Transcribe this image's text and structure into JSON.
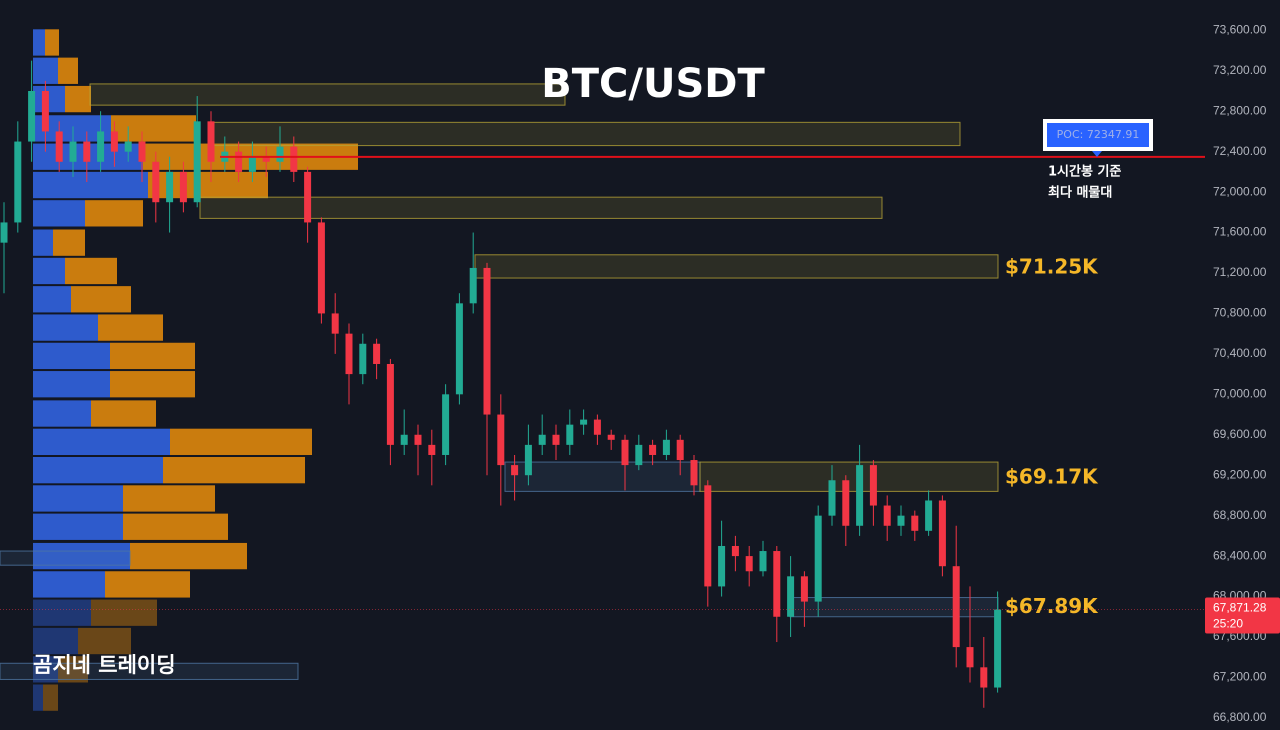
{
  "title": "BTC/USDT",
  "watermark": "곰지네 트레이딩",
  "chart_data": {
    "type": "candlestick",
    "open": [
      71500,
      71700,
      72500,
      73000,
      72600,
      72300,
      72500,
      72300,
      72600,
      72400,
      72500,
      72300,
      71900,
      72200,
      71900,
      72700,
      72300,
      72400,
      72200,
      72350,
      72300,
      72450,
      72200,
      71700,
      70800,
      70600,
      70200,
      70500,
      70300,
      69500,
      69600,
      69500,
      69400,
      70000,
      70900,
      71250,
      69800,
      69300,
      69200,
      69500,
      69600,
      69500,
      69700,
      69750,
      69600,
      69550,
      69300,
      69500,
      69400,
      69550,
      69350,
      69100,
      68100,
      68500,
      68400,
      68250,
      68450,
      67800,
      68200,
      67950,
      68800,
      69150,
      68700,
      69300,
      68900,
      68700,
      68800,
      68650,
      68950,
      68300,
      67500,
      67300,
      67100
    ],
    "high": [
      71900,
      72700,
      73300,
      73100,
      72700,
      72650,
      72600,
      72800,
      72700,
      72650,
      72600,
      72400,
      72350,
      72300,
      72950,
      72800,
      72550,
      72500,
      72500,
      72450,
      72650,
      72550,
      72250,
      71750,
      71000,
      70700,
      70600,
      70550,
      70350,
      69850,
      69700,
      69650,
      70100,
      71000,
      71600,
      71300,
      70000,
      69400,
      69700,
      69800,
      69700,
      69850,
      69850,
      69800,
      69650,
      69600,
      69600,
      69550,
      69650,
      69600,
      69400,
      69150,
      68750,
      68600,
      68500,
      68550,
      68500,
      68400,
      68250,
      68900,
      69300,
      69200,
      69500,
      69350,
      69000,
      68900,
      68850,
      69050,
      69000,
      68700,
      68100,
      67600,
      68050
    ],
    "low": [
      71000,
      71600,
      72300,
      72400,
      72200,
      72150,
      72100,
      72200,
      72250,
      72300,
      72100,
      71700,
      71600,
      71800,
      71850,
      72100,
      72200,
      72100,
      72100,
      72150,
      72200,
      72100,
      71500,
      70700,
      70400,
      69900,
      70100,
      70150,
      69300,
      69400,
      69200,
      69100,
      69300,
      69900,
      70800,
      69200,
      68900,
      68950,
      69100,
      69400,
      69350,
      69400,
      69600,
      69500,
      69450,
      69050,
      69250,
      69300,
      69350,
      69200,
      69000,
      67900,
      68000,
      68250,
      68100,
      68200,
      67550,
      67600,
      67700,
      67800,
      68700,
      68500,
      68600,
      68700,
      68550,
      68600,
      68550,
      68600,
      68200,
      67300,
      67150,
      66900,
      67050
    ],
    "close": [
      71700,
      72500,
      73000,
      72600,
      72300,
      72500,
      72300,
      72600,
      72400,
      72500,
      72300,
      71900,
      72200,
      71900,
      72700,
      72300,
      72400,
      72200,
      72350,
      72300,
      72450,
      72200,
      71700,
      70800,
      70600,
      70200,
      70500,
      70300,
      69500,
      69600,
      69500,
      69400,
      70000,
      70900,
      71250,
      69800,
      69300,
      69200,
      69500,
      69600,
      69500,
      69700,
      69750,
      69600,
      69550,
      69300,
      69500,
      69400,
      69550,
      69350,
      69100,
      68100,
      68500,
      68400,
      68250,
      68450,
      67800,
      68200,
      67950,
      68800,
      69150,
      68700,
      69300,
      68900,
      68700,
      68800,
      68650,
      68950,
      68300,
      67500,
      67300,
      67100,
      67871.28
    ],
    "last_price_label": "67,871.28",
    "countdown": "25:20",
    "up_color": "#22ab94",
    "down_color": "#f23645",
    "ylim": [
      66680,
      73900
    ],
    "yticks": [
      {
        "value": 73600,
        "label": "73,600.00"
      },
      {
        "value": 73200,
        "label": "73,200.00"
      },
      {
        "value": 72800,
        "label": "72,800.00"
      },
      {
        "value": 72400,
        "label": "72,400.00"
      },
      {
        "value": 72000,
        "label": "72,000.00"
      },
      {
        "value": 71600,
        "label": "71,600.00"
      },
      {
        "value": 71200,
        "label": "71,200.00"
      },
      {
        "value": 70800,
        "label": "70,800.00"
      },
      {
        "value": 70400,
        "label": "70,400.00"
      },
      {
        "value": 70000,
        "label": "70,000.00"
      },
      {
        "value": 69600,
        "label": "69,600.00"
      },
      {
        "value": 69200,
        "label": "69,200.00"
      },
      {
        "value": 68800,
        "label": "68,800.00"
      },
      {
        "value": 68400,
        "label": "68,400.00"
      },
      {
        "value": 68000,
        "label": "68,000.00"
      },
      {
        "value": 67600,
        "label": "67,600.00"
      },
      {
        "value": 67200,
        "label": "67,200.00"
      },
      {
        "value": 66800,
        "label": "66,800.00"
      }
    ],
    "poc": {
      "value": 72347.91,
      "label": "POC: 72347.91",
      "note": [
        "1시간봉 기준",
        "최다 매물대"
      ],
      "color": "#e0101a"
    },
    "zones": [
      {
        "top": 73070,
        "bottom": 72860,
        "color": "#b5a336"
      },
      {
        "top": 72690,
        "bottom": 72460,
        "color": "#b5a336"
      },
      {
        "top": 71950,
        "bottom": 71740,
        "color": "#b5a336"
      },
      {
        "top": 71380,
        "bottom": 71150,
        "color": "#b5a336",
        "level": 71250,
        "label": "$71.25K"
      },
      {
        "top": 69330,
        "bottom": 69040,
        "color": "#4f77a3"
      },
      {
        "top": 69330,
        "bottom": 69040,
        "color": "#b5a336",
        "level": 69170,
        "label": "$69.17K"
      },
      {
        "top": 67990,
        "bottom": 67800,
        "color": "#4f77a3",
        "level": 67890,
        "label": "$67.89K"
      },
      {
        "top": 68450,
        "bottom": 68310,
        "color": "#4f77a3"
      },
      {
        "top": 67340,
        "bottom": 67180,
        "color": "#4f77a3"
      }
    ],
    "volume_profile": {
      "levels": [
        73480,
        73200,
        72920,
        72630,
        72350,
        72070,
        71790,
        71500,
        71220,
        70940,
        70660,
        70380,
        70100,
        69810,
        69530,
        69250,
        68970,
        68690,
        68400,
        68120,
        67840,
        67560,
        67280,
        67000
      ],
      "up": [
        12,
        25,
        32,
        78,
        110,
        115,
        52,
        20,
        32,
        38,
        65,
        77,
        77,
        58,
        137,
        130,
        90,
        90,
        97,
        72,
        58,
        45,
        25,
        10
      ],
      "down": [
        14,
        20,
        26,
        85,
        215,
        120,
        58,
        32,
        52,
        60,
        65,
        85,
        85,
        65,
        142,
        142,
        92,
        105,
        117,
        85,
        66,
        53,
        30,
        15
      ],
      "up_color": "#2f5fd6",
      "down_color": "#d4820e"
    }
  }
}
